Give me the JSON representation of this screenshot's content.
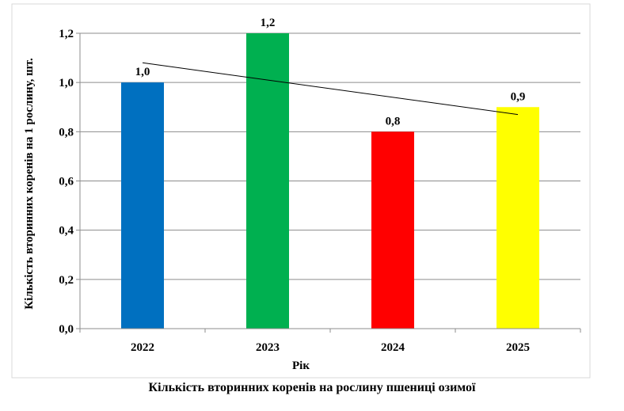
{
  "caption": "Кількість вторинних коренів на рослину пшениці озимої",
  "chart_data": {
    "type": "bar",
    "categories": [
      "2022",
      "2023",
      "2024",
      "2025"
    ],
    "values": [
      1.0,
      1.2,
      0.8,
      0.9
    ],
    "value_labels": [
      "1,0",
      "1,2",
      "0,8",
      "0,9"
    ],
    "colors": [
      "#0070C0",
      "#00B050",
      "#FF0000",
      "#FFFF00"
    ],
    "xlabel": "Рік",
    "ylabel": "Кількість вторинних коренів на 1 рослину, шт.",
    "ylim": [
      0,
      1.2
    ],
    "yticks": [
      0,
      0.2,
      0.4,
      0.6,
      0.8,
      1.0,
      1.2
    ],
    "ytick_labels": [
      "0,0",
      "0,2",
      "0,4",
      "0,6",
      "0,8",
      "1,0",
      "1,2"
    ],
    "grid": true,
    "trendline": {
      "type": "linear",
      "color": "#000000"
    }
  }
}
